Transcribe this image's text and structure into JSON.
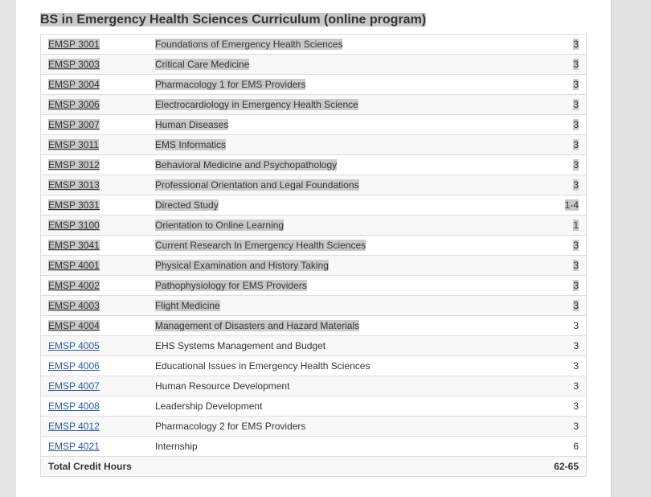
{
  "header": {
    "title": "BS in Emergency Health Sciences Curriculum (online program)"
  },
  "table": {
    "rows": [
      [
        "EMSP 3001",
        "Foundations of Emergency Health Sciences",
        3
      ],
      [
        "EMSP 3003",
        "Critical Care Medicine",
        3
      ],
      [
        "EMSP 3004",
        "Pharmacology 1 for EMS Providers",
        3
      ],
      [
        "EMSP 3006",
        "Electrocardiology in Emergency Health Science",
        3
      ],
      [
        "EMSP 3007",
        "Human Diseases",
        3
      ],
      [
        "EMSP 3011",
        "EMS Informatics",
        3
      ],
      [
        "EMSP 3012",
        "Behavioral Medicine and Psychopathology",
        3
      ],
      [
        "EMSP 3013",
        "Professional Orientation and Legal Foundations",
        3
      ],
      [
        "EMSP 3031",
        "Directed Study",
        "1-4"
      ],
      [
        "EMSP 3100",
        "Orientation to Online Learning",
        1
      ],
      [
        "EMSP 3041",
        "Current Research In Emergency Health Sciences",
        3
      ],
      [
        "EMSP 4001",
        "Physical Examination and History Taking",
        3
      ],
      [
        "EMSP 4002",
        "Pathophysiology for EMS Providers",
        3
      ],
      [
        "EMSP 4003",
        "Flight Medicine",
        3
      ],
      [
        "EMSP 4004",
        "Management of Disasters and Hazard Materials",
        3
      ],
      [
        "EMSP 4005",
        "EHS Systems Management and Budget",
        3
      ],
      [
        "EMSP 4006",
        "Educational Issues in Emergency Health Sciences",
        3
      ],
      [
        "EMSP 4007",
        "Human Resource Development",
        3
      ],
      [
        "EMSP 4008",
        "Leadership Development",
        3
      ],
      [
        "EMSP 4012",
        "Pharmacology 2 for EMS Providers",
        3
      ],
      [
        "EMSP 4021",
        "Internship",
        6
      ]
    ],
    "total": [
      "Total Credit Hours",
      "62-65"
    ]
  }
}
